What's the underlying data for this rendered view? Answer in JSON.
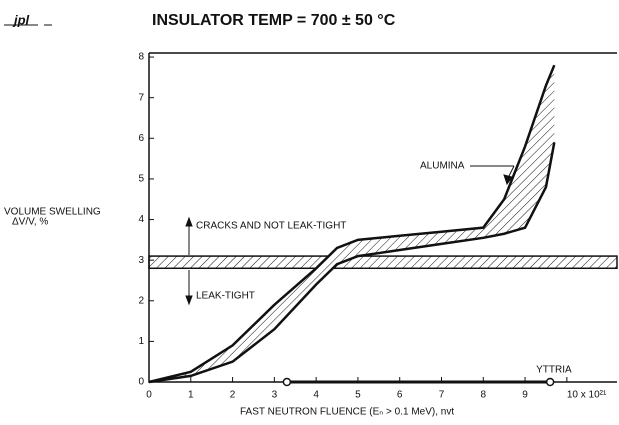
{
  "logo": "jpl",
  "chart_data": {
    "type": "band",
    "title": "INSULATOR TEMP = 700 ± 50 °C",
    "x_label": "FAST NEUTRON FLUENCE (Eₙ > 0.1 MeV), nvt",
    "y_label": [
      "VOLUME SWELLING",
      "ΔV/V, %"
    ],
    "xlim": [
      0,
      11.2
    ],
    "ylim": [
      0,
      8.1
    ],
    "xticks": [
      0,
      1,
      2,
      3,
      4,
      5,
      6,
      7,
      8,
      9,
      {
        "value": 10,
        "label": "10 x 10²¹"
      }
    ],
    "yticks": [
      0,
      1,
      2,
      3,
      4,
      5,
      6,
      7,
      8
    ],
    "series": [
      {
        "name": "ALUMINA",
        "x": [
          0,
          1,
          2,
          3,
          4,
          4.5,
          5,
          6,
          7,
          8,
          8.5,
          9,
          9.5,
          9.7
        ],
        "upper": [
          0,
          0.25,
          0.9,
          1.9,
          2.8,
          3.3,
          3.5,
          3.6,
          3.7,
          3.8,
          4.5,
          5.8,
          7.3,
          7.8
        ],
        "lower": [
          0,
          0.15,
          0.5,
          1.3,
          2.4,
          2.9,
          3.1,
          3.25,
          3.4,
          3.55,
          3.65,
          3.8,
          4.8,
          5.9
        ]
      },
      {
        "name": "YTTRIA",
        "x": [
          3.3,
          9.6
        ],
        "values": [
          0,
          0
        ]
      }
    ],
    "threshold_band": [
      2.8,
      3.1
    ],
    "annotations": [
      "CRACKS AND NOT LEAK-TIGHT",
      "LEAK-TIGHT"
    ]
  }
}
